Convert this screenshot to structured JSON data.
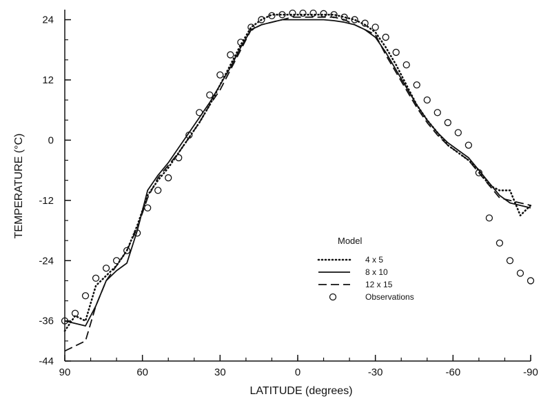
{
  "chart_data": {
    "type": "line",
    "title": "",
    "xlabel": "LATITUDE (degrees)",
    "ylabel": "TEMPERATURE (°C)",
    "xlim": [
      90,
      -90
    ],
    "ylim": [
      -44,
      26
    ],
    "x_ticks": [
      90,
      60,
      30,
      0,
      -30,
      -60,
      -90
    ],
    "x_tick_labels": [
      "90",
      "60",
      "30",
      "0",
      "-30",
      "-60",
      "-90"
    ],
    "y_ticks": [
      24,
      12,
      0,
      -12,
      -24,
      -36,
      -44
    ],
    "y_tick_labels": [
      "24",
      "12",
      "0",
      "-12",
      "-24",
      "-36",
      "-44"
    ],
    "grid": false,
    "legend": {
      "title": "Model",
      "placement": "lower-right",
      "entries": [
        "4 x 5",
        "8 x 10",
        "12 x 15",
        "Observations"
      ]
    },
    "series": [
      {
        "name": "4 x 5",
        "style": "dotted",
        "x": [
          90,
          86,
          82,
          78,
          74,
          70,
          66,
          62,
          58,
          54,
          50,
          46,
          42,
          38,
          34,
          30,
          26,
          22,
          18,
          14,
          10,
          6,
          2,
          -2,
          -6,
          -10,
          -14,
          -18,
          -22,
          -26,
          -30,
          -34,
          -38,
          -42,
          -46,
          -50,
          -54,
          -58,
          -62,
          -66,
          -70,
          -74,
          -78,
          -82,
          -86,
          -90
        ],
        "y": [
          -38,
          -35,
          -36,
          -29,
          -27,
          -25,
          -22,
          -17,
          -11,
          -8,
          -5.5,
          -2.5,
          0.5,
          3.5,
          7,
          11,
          15,
          19,
          22.5,
          24,
          25,
          25,
          25,
          25,
          25,
          25,
          25,
          24.5,
          24,
          23,
          21.5,
          18.5,
          15,
          11,
          7,
          4,
          1.5,
          -1,
          -2.5,
          -4,
          -6,
          -9,
          -10,
          -10,
          -15,
          -13
        ]
      },
      {
        "name": "8 x 10",
        "style": "solid",
        "x": [
          90,
          86,
          82,
          78,
          74,
          70,
          66,
          62,
          58,
          54,
          50,
          46,
          42,
          38,
          34,
          30,
          26,
          22,
          18,
          14,
          10,
          6,
          2,
          -2,
          -6,
          -10,
          -14,
          -18,
          -22,
          -26,
          -30,
          -34,
          -38,
          -42,
          -46,
          -50,
          -54,
          -58,
          -62,
          -66,
          -70,
          -74,
          -78,
          -82,
          -86,
          -90
        ],
        "y": [
          -36,
          -36.5,
          -37,
          -33,
          -28,
          -26,
          -24.5,
          -18,
          -10,
          -7,
          -4.5,
          -1.5,
          1.5,
          4.5,
          7.5,
          11,
          14.5,
          18.5,
          22,
          23,
          23.5,
          24,
          24,
          24,
          24,
          24,
          23.8,
          23.5,
          23,
          22,
          20.5,
          17.5,
          14,
          10.5,
          7,
          4,
          1.5,
          -0.5,
          -2,
          -3.5,
          -6,
          -8.5,
          -11,
          -12.5,
          -13,
          -13.5
        ]
      },
      {
        "name": "12 x 15",
        "style": "dashed",
        "x": [
          90,
          86,
          82,
          78,
          74,
          70,
          66,
          62,
          58,
          54,
          50,
          46,
          42,
          38,
          34,
          30,
          26,
          22,
          18,
          14,
          10,
          6,
          2,
          -2,
          -6,
          -10,
          -14,
          -18,
          -22,
          -26,
          -30,
          -34,
          -38,
          -42,
          -46,
          -50,
          -54,
          -58,
          -62,
          -66,
          -70,
          -74,
          -78,
          -82,
          -86,
          -90
        ],
        "y": [
          -42,
          -41,
          -40,
          -33,
          -28,
          -25,
          -22,
          -17.5,
          -11.5,
          -7.5,
          -5,
          -2.5,
          0.5,
          3.5,
          7,
          10,
          14,
          18,
          22,
          23,
          23.5,
          24,
          24.5,
          24.5,
          24.5,
          24.5,
          24.5,
          24,
          23,
          22,
          21,
          17,
          13.5,
          10,
          6.5,
          3.5,
          1,
          -1,
          -2.5,
          -4,
          -6.5,
          -9,
          -11.5,
          -12,
          -12.5,
          -13
        ]
      },
      {
        "name": "Observations",
        "style": "markers",
        "x": [
          90,
          86,
          82,
          78,
          74,
          70,
          66,
          62,
          58,
          54,
          50,
          46,
          42,
          38,
          34,
          30,
          26,
          22,
          18,
          14,
          10,
          6,
          2,
          -2,
          -6,
          -10,
          -14,
          -18,
          -22,
          -26,
          -30,
          -34,
          -38,
          -42,
          -46,
          -50,
          -54,
          -58,
          -62,
          -66,
          -70,
          -74,
          -78,
          -82,
          -86,
          -90
        ],
        "y": [
          -36,
          -34.5,
          -31,
          -27.5,
          -25.5,
          -24,
          -22,
          -18.5,
          -13.5,
          -10,
          -7.5,
          -3.5,
          1,
          5.5,
          9,
          13,
          17,
          19.5,
          22.5,
          24,
          24.8,
          25,
          25.3,
          25.3,
          25.3,
          25.2,
          25,
          24.5,
          24,
          23.3,
          22.5,
          20.5,
          17.5,
          15,
          11,
          8,
          5.5,
          3.5,
          1.5,
          -1,
          -6.5,
          -15.5,
          -20.5,
          -24,
          -26.5,
          -28
        ]
      }
    ]
  }
}
